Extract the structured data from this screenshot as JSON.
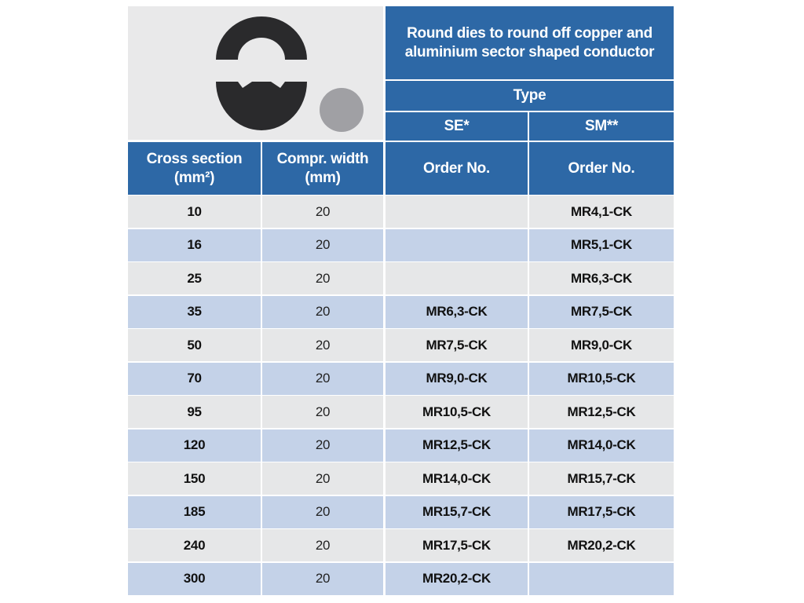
{
  "header": {
    "title": "Round dies to round off copper and aluminium sector shaped conductor",
    "type_label": "Type",
    "types": [
      "SE*",
      "SM**"
    ],
    "columns": [
      "Cross section (mm²)",
      "Compr. width (mm)",
      "Order No.",
      "Order No."
    ]
  },
  "table": {
    "rows": [
      [
        10,
        20,
        null,
        "MR4,1-CK"
      ],
      [
        16,
        20,
        null,
        "MR5,1-CK"
      ],
      [
        25,
        20,
        null,
        "MR6,3-CK"
      ],
      [
        35,
        20,
        "MR6,3-CK",
        "MR7,5-CK"
      ],
      [
        50,
        20,
        "MR7,5-CK",
        "MR9,0-CK"
      ],
      [
        70,
        20,
        "MR9,0-CK",
        "MR10,5-CK"
      ],
      [
        95,
        20,
        "MR10,5-CK",
        "MR12,5-CK"
      ],
      [
        120,
        20,
        "MR12,5-CK",
        "MR14,0-CK"
      ],
      [
        150,
        20,
        "MR14,0-CK",
        "MR15,7-CK"
      ],
      [
        185,
        20,
        "MR15,7-CK",
        "MR17,5-CK"
      ],
      [
        240,
        20,
        "MR17,5-CK",
        "MR20,2-CK"
      ],
      [
        300,
        20,
        "MR20,2-CK",
        null
      ]
    ]
  }
}
